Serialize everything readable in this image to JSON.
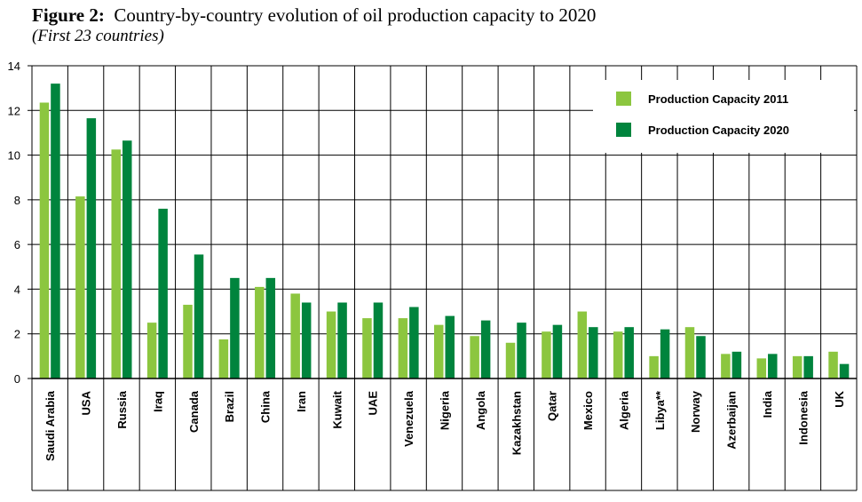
{
  "figure": {
    "label": "Figure 2:",
    "title": "Country-by-country evolution of oil production capacity to 2020",
    "subtitle": "(First 23 countries)"
  },
  "colors": {
    "s2011": "#8cc63f",
    "s2020": "#00843d",
    "grid": "#000000"
  },
  "chart_data": {
    "type": "bar",
    "title": "Country-by-country evolution of oil production capacity to 2020",
    "subtitle": "(First 23 countries)",
    "xlabel": "",
    "ylabel": "",
    "ylim": [
      0,
      14
    ],
    "yticks": [
      0,
      2,
      4,
      6,
      8,
      10,
      12,
      14
    ],
    "grid": true,
    "legend_position": "top-right",
    "categories": [
      "Saudi Arabia",
      "USA",
      "Russia",
      "Iraq",
      "Canada",
      "Brazil",
      "China",
      "Iran",
      "Kuwait",
      "UAE",
      "Venezuela",
      "Nigeria",
      "Angola",
      "Kazakhstan",
      "Qatar",
      "Mexico",
      "Algeria",
      "Libya**",
      "Norway",
      "Azerbaijan",
      "India",
      "Indonesia",
      "UK"
    ],
    "series": [
      {
        "name": "Production Capacity 2011",
        "values": [
          12.35,
          8.15,
          10.25,
          2.5,
          3.3,
          1.75,
          4.1,
          3.8,
          3.0,
          2.7,
          2.7,
          2.4,
          1.9,
          1.6,
          2.1,
          3.0,
          2.1,
          1.0,
          2.3,
          1.1,
          0.9,
          1.0,
          1.2
        ]
      },
      {
        "name": "Production Capacity 2020",
        "values": [
          13.2,
          11.65,
          10.65,
          7.6,
          5.55,
          4.5,
          4.5,
          3.4,
          3.4,
          3.4,
          3.2,
          2.8,
          2.6,
          2.5,
          2.4,
          2.3,
          2.3,
          2.2,
          1.9,
          1.2,
          1.1,
          1.0,
          0.65
        ]
      }
    ]
  }
}
